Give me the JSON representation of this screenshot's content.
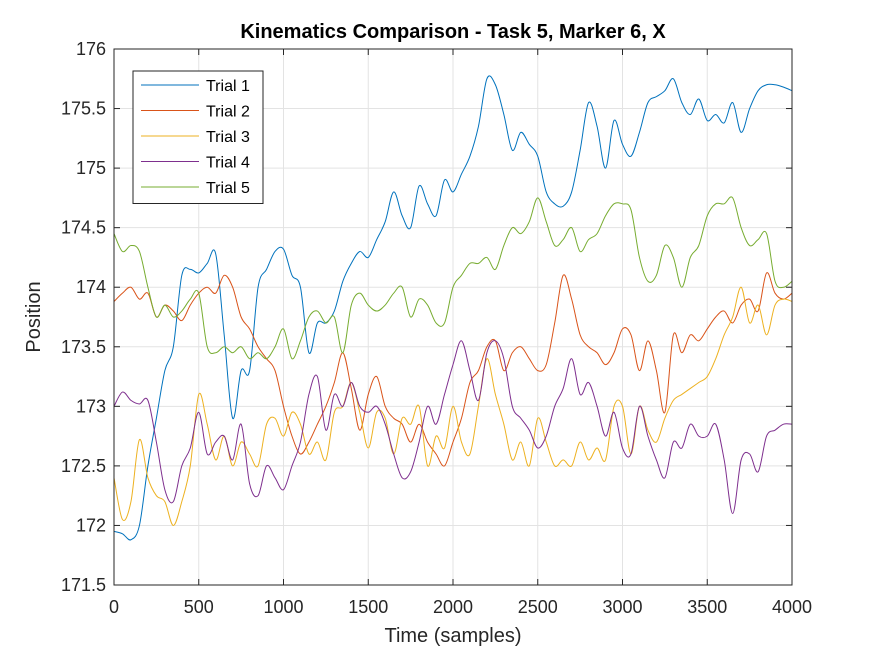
{
  "chart_data": {
    "type": "line",
    "title": "Kinematics Comparison - Task 5, Marker 6, X",
    "xlabel": "Time (samples)",
    "ylabel": "Position",
    "xlim": [
      0,
      4000
    ],
    "ylim": [
      171.5,
      176
    ],
    "xticks": [
      0,
      500,
      1000,
      1500,
      2000,
      2500,
      3000,
      3500,
      4000
    ],
    "yticks": [
      171.5,
      172,
      172.5,
      173,
      173.5,
      174,
      174.5,
      175,
      175.5,
      176
    ],
    "xtick_labels": [
      "0",
      "500",
      "1000",
      "1500",
      "2000",
      "2500",
      "3000",
      "3500",
      "4000"
    ],
    "ytick_labels": [
      "171.5",
      "172",
      "172.5",
      "173",
      "173.5",
      "174",
      "174.5",
      "175",
      "175.5",
      "176"
    ],
    "grid": true,
    "legend_position": "top-left",
    "series": [
      {
        "name": "Trial 1",
        "color": "#0072BD",
        "x": [
          0,
          50,
          100,
          150,
          200,
          250,
          300,
          350,
          400,
          450,
          500,
          550,
          600,
          650,
          700,
          750,
          800,
          850,
          900,
          950,
          1000,
          1050,
          1100,
          1150,
          1200,
          1250,
          1300,
          1350,
          1400,
          1450,
          1500,
          1550,
          1600,
          1650,
          1700,
          1750,
          1800,
          1850,
          1900,
          1950,
          2000,
          2050,
          2100,
          2150,
          2200,
          2250,
          2300,
          2350,
          2400,
          2450,
          2500,
          2550,
          2600,
          2650,
          2700,
          2750,
          2800,
          2850,
          2900,
          2950,
          3000,
          3050,
          3100,
          3150,
          3200,
          3250,
          3300,
          3350,
          3400,
          3450,
          3500,
          3550,
          3600,
          3650,
          3700,
          3750,
          3800,
          3850,
          3900,
          3950,
          4000
        ],
        "y": [
          171.95,
          171.93,
          171.88,
          172.0,
          172.5,
          172.9,
          173.3,
          173.5,
          174.1,
          174.15,
          174.12,
          174.2,
          174.28,
          173.6,
          172.9,
          173.3,
          173.3,
          174.0,
          174.15,
          174.3,
          174.32,
          174.1,
          174.0,
          173.45,
          173.7,
          173.7,
          173.8,
          174.05,
          174.2,
          174.3,
          174.25,
          174.4,
          174.55,
          174.8,
          174.6,
          174.5,
          174.85,
          174.7,
          174.6,
          174.9,
          174.8,
          174.95,
          175.1,
          175.35,
          175.75,
          175.7,
          175.45,
          175.15,
          175.3,
          175.2,
          175.1,
          174.8,
          174.7,
          174.68,
          174.8,
          175.15,
          175.55,
          175.35,
          175.0,
          175.4,
          175.2,
          175.1,
          175.3,
          175.55,
          175.6,
          175.65,
          175.75,
          175.55,
          175.45,
          175.58,
          175.4,
          175.45,
          175.38,
          175.55,
          175.3,
          175.5,
          175.65,
          175.7,
          175.7,
          175.68,
          175.65
        ]
      },
      {
        "name": "Trial 2",
        "color": "#D95319",
        "x": [
          0,
          50,
          100,
          150,
          200,
          250,
          300,
          350,
          400,
          450,
          500,
          550,
          600,
          650,
          700,
          750,
          800,
          850,
          900,
          950,
          1000,
          1050,
          1100,
          1150,
          1200,
          1250,
          1300,
          1350,
          1400,
          1450,
          1500,
          1550,
          1600,
          1650,
          1700,
          1750,
          1800,
          1850,
          1900,
          1950,
          2000,
          2050,
          2100,
          2150,
          2200,
          2250,
          2300,
          2350,
          2400,
          2450,
          2500,
          2550,
          2600,
          2650,
          2700,
          2750,
          2800,
          2850,
          2900,
          2950,
          3000,
          3050,
          3100,
          3150,
          3200,
          3250,
          3300,
          3350,
          3400,
          3450,
          3500,
          3550,
          3600,
          3650,
          3700,
          3750,
          3800,
          3850,
          3900,
          3950,
          4000
        ],
        "y": [
          173.88,
          173.95,
          174.0,
          173.9,
          173.95,
          173.75,
          173.85,
          173.8,
          173.72,
          173.85,
          173.95,
          174.0,
          173.95,
          174.1,
          174.0,
          173.75,
          173.65,
          173.5,
          173.4,
          173.3,
          173.0,
          172.75,
          172.6,
          172.7,
          172.85,
          173.0,
          173.2,
          173.45,
          173.15,
          172.8,
          173.1,
          173.25,
          173.0,
          172.9,
          172.85,
          172.7,
          172.85,
          172.7,
          172.6,
          172.5,
          172.7,
          172.9,
          173.2,
          173.3,
          173.5,
          173.55,
          173.3,
          173.45,
          173.5,
          173.4,
          173.3,
          173.35,
          173.7,
          174.1,
          173.9,
          173.6,
          173.5,
          173.45,
          173.35,
          173.45,
          173.65,
          173.6,
          173.3,
          173.55,
          173.3,
          172.95,
          173.6,
          173.45,
          173.6,
          173.55,
          173.65,
          173.75,
          173.8,
          173.7,
          173.85,
          173.9,
          173.8,
          174.12,
          173.95,
          173.9,
          173.95
        ]
      },
      {
        "name": "Trial 3",
        "color": "#EDB120",
        "x": [
          0,
          50,
          100,
          150,
          200,
          250,
          300,
          350,
          400,
          450,
          500,
          550,
          600,
          650,
          700,
          750,
          800,
          850,
          900,
          950,
          1000,
          1050,
          1100,
          1150,
          1200,
          1250,
          1300,
          1350,
          1400,
          1450,
          1500,
          1550,
          1600,
          1650,
          1700,
          1750,
          1800,
          1850,
          1900,
          1950,
          2000,
          2050,
          2100,
          2150,
          2200,
          2250,
          2300,
          2350,
          2400,
          2450,
          2500,
          2550,
          2600,
          2650,
          2700,
          2750,
          2800,
          2850,
          2900,
          2950,
          3000,
          3050,
          3100,
          3150,
          3200,
          3250,
          3300,
          3350,
          3400,
          3450,
          3500,
          3550,
          3600,
          3650,
          3700,
          3750,
          3800,
          3850,
          3900,
          3950,
          4000
        ],
        "y": [
          172.4,
          172.05,
          172.2,
          172.72,
          172.4,
          172.25,
          172.2,
          172.0,
          172.2,
          172.5,
          173.1,
          172.85,
          172.55,
          172.75,
          172.5,
          172.7,
          172.6,
          172.5,
          172.85,
          172.9,
          172.75,
          172.95,
          172.85,
          172.6,
          172.7,
          172.55,
          172.95,
          173.0,
          173.2,
          172.95,
          172.65,
          172.95,
          172.9,
          172.6,
          172.9,
          172.85,
          173.0,
          172.5,
          172.75,
          172.65,
          173.0,
          172.7,
          172.6,
          173.0,
          173.4,
          173.1,
          172.85,
          172.55,
          172.7,
          172.5,
          172.9,
          172.7,
          172.5,
          172.55,
          172.5,
          172.7,
          172.55,
          172.65,
          172.55,
          173.0,
          173.0,
          172.6,
          173.0,
          172.8,
          172.7,
          172.9,
          173.05,
          173.1,
          173.15,
          173.2,
          173.25,
          173.4,
          173.6,
          173.75,
          174.0,
          173.7,
          173.85,
          173.6,
          173.85,
          173.9,
          173.88
        ]
      },
      {
        "name": "Trial 4",
        "color": "#7E2F8E",
        "x": [
          0,
          50,
          100,
          150,
          200,
          250,
          300,
          350,
          400,
          450,
          500,
          550,
          600,
          650,
          700,
          750,
          800,
          850,
          900,
          950,
          1000,
          1050,
          1100,
          1150,
          1200,
          1250,
          1300,
          1350,
          1400,
          1450,
          1500,
          1550,
          1600,
          1650,
          1700,
          1750,
          1800,
          1850,
          1900,
          1950,
          2000,
          2050,
          2100,
          2150,
          2200,
          2250,
          2300,
          2350,
          2400,
          2450,
          2500,
          2550,
          2600,
          2650,
          2700,
          2750,
          2800,
          2850,
          2900,
          2950,
          3000,
          3050,
          3100,
          3150,
          3200,
          3250,
          3300,
          3350,
          3400,
          3450,
          3500,
          3550,
          3600,
          3650,
          3700,
          3750,
          3800,
          3850,
          3900,
          3950,
          4000
        ],
        "y": [
          173.0,
          173.12,
          173.05,
          173.02,
          173.05,
          172.7,
          172.3,
          172.2,
          172.5,
          172.65,
          172.95,
          172.6,
          172.7,
          172.75,
          172.55,
          172.85,
          172.35,
          172.25,
          172.5,
          172.4,
          172.3,
          172.5,
          172.7,
          173.1,
          173.25,
          172.8,
          173.1,
          173.0,
          173.2,
          173.0,
          172.95,
          173.0,
          172.85,
          172.6,
          172.4,
          172.45,
          172.7,
          173.0,
          172.85,
          173.1,
          173.35,
          173.55,
          173.3,
          173.05,
          173.45,
          173.55,
          173.4,
          173.0,
          172.9,
          172.8,
          172.65,
          172.75,
          173.0,
          173.15,
          173.4,
          173.1,
          173.2,
          173.0,
          172.75,
          172.95,
          172.65,
          172.6,
          173.0,
          172.75,
          172.55,
          172.4,
          172.7,
          172.65,
          172.85,
          172.75,
          172.75,
          172.85,
          172.55,
          172.1,
          172.55,
          172.6,
          172.45,
          172.75,
          172.8,
          172.85,
          172.85
        ]
      },
      {
        "name": "Trial 5",
        "color": "#77AC30",
        "x": [
          0,
          50,
          100,
          150,
          200,
          250,
          300,
          350,
          400,
          450,
          500,
          550,
          600,
          650,
          700,
          750,
          800,
          850,
          900,
          950,
          1000,
          1050,
          1100,
          1150,
          1200,
          1250,
          1300,
          1350,
          1400,
          1450,
          1500,
          1550,
          1600,
          1650,
          1700,
          1750,
          1800,
          1850,
          1900,
          1950,
          2000,
          2050,
          2100,
          2150,
          2200,
          2250,
          2300,
          2350,
          2400,
          2450,
          2500,
          2550,
          2600,
          2650,
          2700,
          2750,
          2800,
          2850,
          2900,
          2950,
          3000,
          3050,
          3100,
          3150,
          3200,
          3250,
          3300,
          3350,
          3400,
          3450,
          3500,
          3550,
          3600,
          3650,
          3700,
          3750,
          3800,
          3850,
          3900,
          3950,
          4000
        ],
        "y": [
          174.45,
          174.3,
          174.35,
          174.3,
          174.0,
          173.75,
          173.85,
          173.75,
          173.8,
          173.9,
          173.95,
          173.5,
          173.45,
          173.5,
          173.45,
          173.5,
          173.4,
          173.45,
          173.4,
          173.5,
          173.65,
          173.4,
          173.55,
          173.75,
          173.8,
          173.7,
          173.75,
          173.45,
          173.85,
          173.95,
          173.85,
          173.8,
          173.85,
          173.95,
          174.0,
          173.75,
          173.9,
          173.85,
          173.7,
          173.7,
          174.0,
          174.1,
          174.2,
          174.2,
          174.25,
          174.15,
          174.35,
          174.5,
          174.45,
          174.55,
          174.75,
          174.55,
          174.35,
          174.4,
          174.5,
          174.3,
          174.4,
          174.45,
          174.6,
          174.7,
          174.7,
          174.65,
          174.25,
          174.05,
          174.1,
          174.35,
          174.25,
          174.0,
          174.25,
          174.35,
          174.6,
          174.7,
          174.7,
          174.75,
          174.5,
          174.35,
          174.4,
          174.45,
          174.05,
          174.0,
          174.05
        ]
      }
    ]
  }
}
